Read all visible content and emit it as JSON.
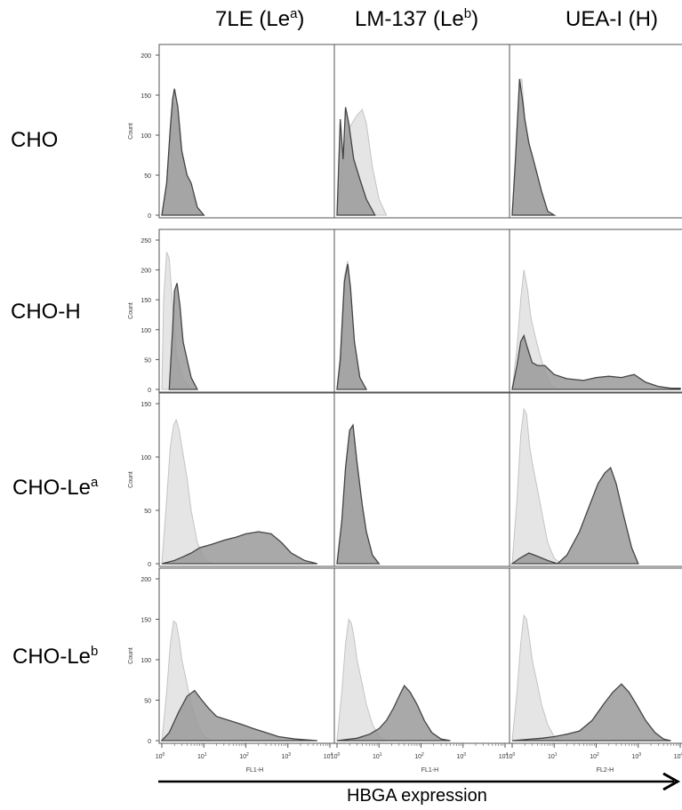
{
  "columns": [
    {
      "name": "7LE (Le",
      "sup": "a",
      "tail": ")"
    },
    {
      "name": "LM-137 (Le",
      "sup": "b",
      "tail": ")"
    },
    {
      "name": "UEA-I (H)",
      "sup": "",
      "tail": ""
    }
  ],
  "rows": [
    {
      "name": "CHO",
      "sup": ""
    },
    {
      "name": "CHO-H",
      "sup": ""
    },
    {
      "name": "CHO-Le",
      "sup": "a"
    },
    {
      "name": "CHO-Le",
      "sup": "b"
    }
  ],
  "x_axis_caption": "HBGA expression",
  "y_axis_label": "Count",
  "x_ticks": [
    "10",
    "10",
    "10",
    "10",
    "10"
  ],
  "x_tick_exponents": [
    "0",
    "1",
    "2",
    "3",
    "4"
  ],
  "x_axis_labels": [
    "FL1-H",
    "FL1-H",
    "FL2-H"
  ],
  "colors": {
    "control": "#e2e2e2",
    "control_line": "#c4c4c4",
    "stained": "#9a9a9a",
    "stained_line": "#444444"
  },
  "chart_data": {
    "type": "area",
    "x_scale": "log",
    "xlim": [
      1,
      10000
    ],
    "ylabel": "Count",
    "rows": [
      {
        "ylim": [
          0,
          200
        ],
        "yticks": [
          0,
          50,
          100,
          150,
          200
        ]
      },
      {
        "ylim": [
          0,
          250
        ],
        "yticks": [
          0,
          50,
          100,
          150,
          200,
          250
        ]
      },
      {
        "ylim": [
          0,
          150
        ],
        "yticks": [
          0,
          50,
          100,
          150
        ]
      },
      {
        "ylim": [
          0,
          200
        ],
        "yticks": [
          0,
          50,
          100,
          150,
          200
        ]
      }
    ],
    "panels": [
      {
        "row": 0,
        "col": 0,
        "control": [
          [
            1,
            0
          ],
          [
            1.3,
            40
          ],
          [
            1.6,
            110
          ],
          [
            1.9,
            140
          ],
          [
            2.2,
            130
          ],
          [
            3,
            80
          ],
          [
            4,
            45
          ],
          [
            5,
            30
          ],
          [
            7,
            8
          ],
          [
            10,
            0
          ]
        ],
        "stained": [
          [
            1,
            0
          ],
          [
            1.3,
            40
          ],
          [
            1.6,
            110
          ],
          [
            1.8,
            145
          ],
          [
            2,
            158
          ],
          [
            2.4,
            135
          ],
          [
            3,
            80
          ],
          [
            4,
            50
          ],
          [
            5,
            40
          ],
          [
            7,
            10
          ],
          [
            10,
            0
          ]
        ]
      },
      {
        "row": 0,
        "col": 1,
        "control": [
          [
            1,
            0
          ],
          [
            1.2,
            40
          ],
          [
            1.5,
            90
          ],
          [
            2,
            110
          ],
          [
            3,
            125
          ],
          [
            4,
            132
          ],
          [
            5,
            115
          ],
          [
            7,
            60
          ],
          [
            10,
            20
          ],
          [
            15,
            0
          ]
        ],
        "stained": [
          [
            1,
            0
          ],
          [
            1.2,
            120
          ],
          [
            1.4,
            70
          ],
          [
            1.6,
            135
          ],
          [
            1.9,
            115
          ],
          [
            2.5,
            70
          ],
          [
            3.5,
            45
          ],
          [
            5,
            20
          ],
          [
            8,
            0
          ]
        ]
      },
      {
        "row": 0,
        "col": 2,
        "control": [
          [
            1,
            0
          ],
          [
            1.2,
            70
          ],
          [
            1.5,
            170
          ],
          [
            1.7,
            170
          ],
          [
            2,
            120
          ],
          [
            2.5,
            90
          ],
          [
            3,
            75
          ],
          [
            4,
            50
          ],
          [
            5,
            30
          ],
          [
            7,
            5
          ],
          [
            10,
            0
          ]
        ],
        "stained": [
          [
            1,
            0
          ],
          [
            1.2,
            70
          ],
          [
            1.5,
            170
          ],
          [
            1.8,
            140
          ],
          [
            2,
            120
          ],
          [
            2.5,
            90
          ],
          [
            3,
            75
          ],
          [
            4,
            50
          ],
          [
            5,
            30
          ],
          [
            7,
            5
          ],
          [
            10,
            0
          ]
        ]
      },
      {
        "row": 1,
        "col": 0,
        "control": [
          [
            1,
            0
          ],
          [
            1.1,
            150
          ],
          [
            1.3,
            230
          ],
          [
            1.5,
            220
          ],
          [
            1.8,
            140
          ],
          [
            2.2,
            60
          ],
          [
            3,
            20
          ],
          [
            5,
            0
          ]
        ],
        "stained": [
          [
            1.5,
            0
          ],
          [
            1.8,
            100
          ],
          [
            2,
            165
          ],
          [
            2.3,
            178
          ],
          [
            2.7,
            140
          ],
          [
            3.2,
            80
          ],
          [
            4,
            50
          ],
          [
            5,
            20
          ],
          [
            7,
            0
          ]
        ]
      },
      {
        "row": 1,
        "col": 1,
        "control": [
          [
            1,
            0
          ],
          [
            1.2,
            60
          ],
          [
            1.5,
            190
          ],
          [
            1.8,
            215
          ],
          [
            2.1,
            170
          ],
          [
            2.6,
            80
          ],
          [
            3.5,
            20
          ],
          [
            5,
            0
          ]
        ],
        "stained": [
          [
            1,
            0
          ],
          [
            1.2,
            50
          ],
          [
            1.5,
            180
          ],
          [
            1.8,
            210
          ],
          [
            2.1,
            170
          ],
          [
            2.6,
            80
          ],
          [
            3.5,
            20
          ],
          [
            5,
            0
          ]
        ]
      },
      {
        "row": 1,
        "col": 2,
        "control": [
          [
            1,
            0
          ],
          [
            1.3,
            70
          ],
          [
            1.6,
            150
          ],
          [
            1.9,
            200
          ],
          [
            2.3,
            170
          ],
          [
            2.8,
            120
          ],
          [
            3.5,
            90
          ],
          [
            4.5,
            60
          ],
          [
            6,
            30
          ],
          [
            8,
            8
          ],
          [
            12,
            0
          ]
        ],
        "stained": [
          [
            1,
            0
          ],
          [
            1.3,
            40
          ],
          [
            1.6,
            80
          ],
          [
            1.9,
            90
          ],
          [
            2.3,
            70
          ],
          [
            3,
            45
          ],
          [
            4,
            40
          ],
          [
            6,
            40
          ],
          [
            10,
            25
          ],
          [
            20,
            18
          ],
          [
            50,
            15
          ],
          [
            100,
            20
          ],
          [
            200,
            22
          ],
          [
            400,
            20
          ],
          [
            800,
            25
          ],
          [
            1500,
            12
          ],
          [
            3000,
            5
          ],
          [
            6000,
            2
          ],
          [
            10000,
            2
          ]
        ]
      },
      {
        "row": 2,
        "col": 0,
        "control": [
          [
            1,
            0
          ],
          [
            1.3,
            60
          ],
          [
            1.6,
            110
          ],
          [
            1.9,
            130
          ],
          [
            2.2,
            135
          ],
          [
            2.6,
            125
          ],
          [
            3,
            110
          ],
          [
            4,
            80
          ],
          [
            5,
            50
          ],
          [
            7,
            20
          ],
          [
            10,
            5
          ],
          [
            15,
            0
          ]
        ],
        "stained": [
          [
            1,
            0
          ],
          [
            2,
            3
          ],
          [
            3,
            6
          ],
          [
            5,
            10
          ],
          [
            8,
            15
          ],
          [
            15,
            18
          ],
          [
            30,
            22
          ],
          [
            60,
            25
          ],
          [
            100,
            28
          ],
          [
            200,
            30
          ],
          [
            400,
            28
          ],
          [
            700,
            20
          ],
          [
            1200,
            10
          ],
          [
            2500,
            3
          ],
          [
            5000,
            0
          ]
        ]
      },
      {
        "row": 2,
        "col": 1,
        "control": [
          [
            1,
            0
          ],
          [
            1.3,
            40
          ],
          [
            1.6,
            90
          ],
          [
            2,
            125
          ],
          [
            2.4,
            130
          ],
          [
            3,
            95
          ],
          [
            4,
            55
          ],
          [
            5,
            30
          ],
          [
            7,
            8
          ],
          [
            10,
            0
          ]
        ],
        "stained": [
          [
            1,
            0
          ],
          [
            1.3,
            40
          ],
          [
            1.6,
            90
          ],
          [
            2,
            125
          ],
          [
            2.4,
            130
          ],
          [
            3,
            95
          ],
          [
            4,
            55
          ],
          [
            5,
            30
          ],
          [
            7,
            8
          ],
          [
            10,
            0
          ]
        ]
      },
      {
        "row": 2,
        "col": 2,
        "control": [
          [
            1,
            0
          ],
          [
            1.3,
            60
          ],
          [
            1.6,
            120
          ],
          [
            1.9,
            145
          ],
          [
            2.2,
            140
          ],
          [
            2.6,
            110
          ],
          [
            3,
            95
          ],
          [
            4,
            70
          ],
          [
            5,
            50
          ],
          [
            7,
            20
          ],
          [
            10,
            5
          ],
          [
            15,
            0
          ]
        ],
        "stained": [
          [
            1,
            0
          ],
          [
            1.5,
            5
          ],
          [
            2.5,
            10
          ],
          [
            4,
            7
          ],
          [
            7,
            3
          ],
          [
            12,
            0
          ],
          [
            20,
            8
          ],
          [
            40,
            30
          ],
          [
            70,
            55
          ],
          [
            110,
            75
          ],
          [
            160,
            85
          ],
          [
            220,
            90
          ],
          [
            300,
            75
          ],
          [
            450,
            45
          ],
          [
            700,
            15
          ],
          [
            1000,
            0
          ]
        ]
      },
      {
        "row": 3,
        "col": 0,
        "control": [
          [
            1,
            0
          ],
          [
            1.3,
            60
          ],
          [
            1.6,
            120
          ],
          [
            1.9,
            148
          ],
          [
            2.2,
            145
          ],
          [
            2.6,
            125
          ],
          [
            3,
            100
          ],
          [
            4,
            70
          ],
          [
            5,
            45
          ],
          [
            7,
            20
          ],
          [
            10,
            5
          ],
          [
            15,
            0
          ]
        ],
        "stained": [
          [
            1,
            0
          ],
          [
            1.5,
            10
          ],
          [
            2.5,
            35
          ],
          [
            4,
            55
          ],
          [
            6,
            62
          ],
          [
            9,
            50
          ],
          [
            13,
            40
          ],
          [
            20,
            30
          ],
          [
            40,
            25
          ],
          [
            80,
            20
          ],
          [
            150,
            15
          ],
          [
            300,
            10
          ],
          [
            600,
            5
          ],
          [
            1500,
            2
          ],
          [
            5000,
            0
          ]
        ]
      },
      {
        "row": 3,
        "col": 1,
        "control": [
          [
            1,
            0
          ],
          [
            1.3,
            60
          ],
          [
            1.6,
            120
          ],
          [
            1.9,
            150
          ],
          [
            2.2,
            145
          ],
          [
            2.6,
            125
          ],
          [
            3,
            100
          ],
          [
            4,
            70
          ],
          [
            5,
            45
          ],
          [
            7,
            20
          ],
          [
            10,
            5
          ],
          [
            15,
            0
          ]
        ],
        "stained": [
          [
            1,
            0
          ],
          [
            3,
            3
          ],
          [
            6,
            8
          ],
          [
            10,
            15
          ],
          [
            15,
            25
          ],
          [
            22,
            40
          ],
          [
            30,
            55
          ],
          [
            40,
            68
          ],
          [
            55,
            60
          ],
          [
            80,
            45
          ],
          [
            120,
            25
          ],
          [
            180,
            10
          ],
          [
            300,
            2
          ],
          [
            500,
            0
          ]
        ]
      },
      {
        "row": 3,
        "col": 2,
        "control": [
          [
            1,
            0
          ],
          [
            1.3,
            60
          ],
          [
            1.6,
            120
          ],
          [
            1.9,
            155
          ],
          [
            2.2,
            150
          ],
          [
            2.6,
            125
          ],
          [
            3,
            100
          ],
          [
            4,
            70
          ],
          [
            5,
            45
          ],
          [
            7,
            20
          ],
          [
            10,
            5
          ],
          [
            15,
            0
          ]
        ],
        "stained": [
          [
            1,
            0
          ],
          [
            5,
            3
          ],
          [
            10,
            5
          ],
          [
            20,
            8
          ],
          [
            40,
            12
          ],
          [
            80,
            25
          ],
          [
            150,
            45
          ],
          [
            250,
            60
          ],
          [
            400,
            70
          ],
          [
            600,
            60
          ],
          [
            900,
            45
          ],
          [
            1500,
            25
          ],
          [
            2500,
            10
          ],
          [
            4000,
            2
          ],
          [
            6000,
            0
          ]
        ]
      }
    ]
  }
}
